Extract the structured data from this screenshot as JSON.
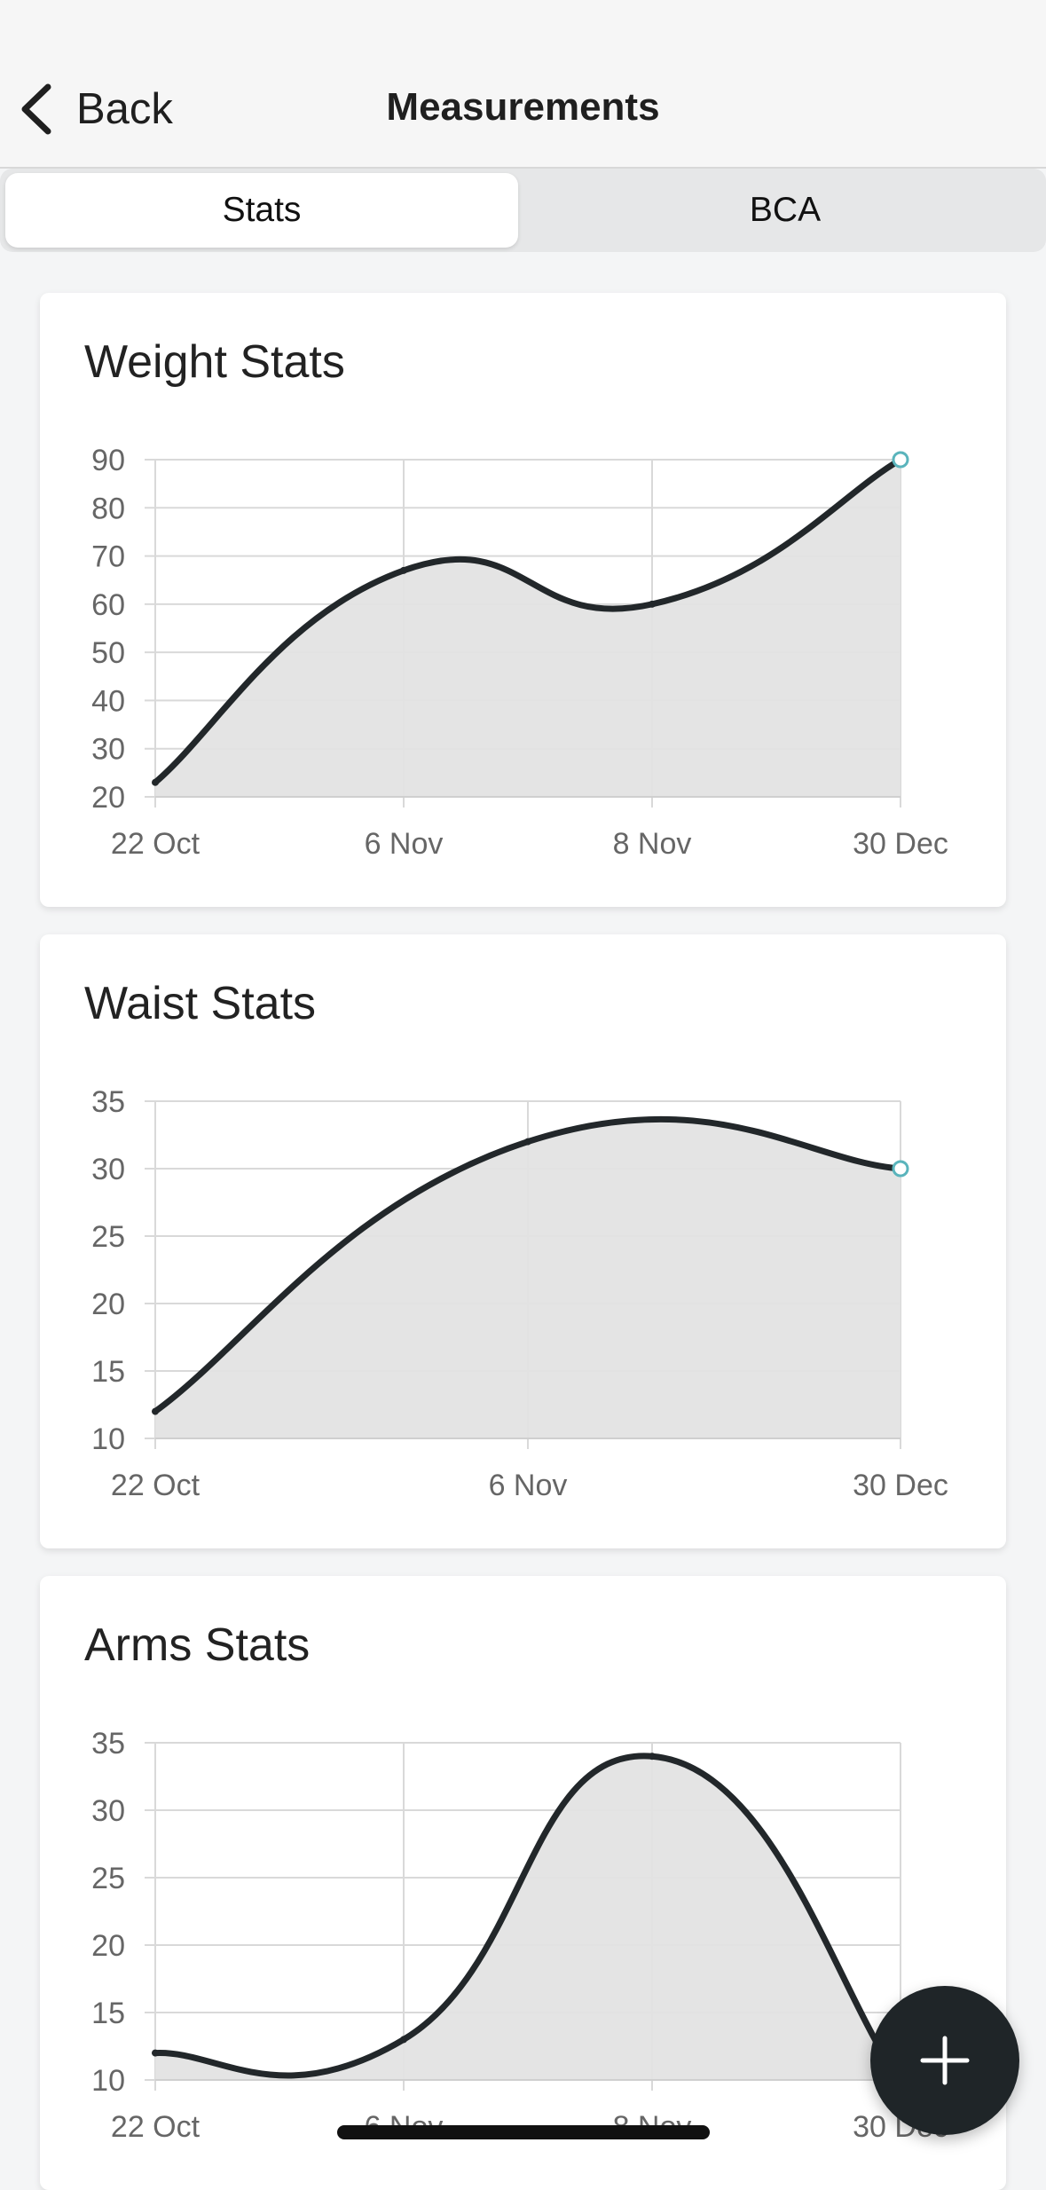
{
  "header": {
    "back_label": "Back",
    "title": "Measurements"
  },
  "tabs": {
    "stats_label": "Stats",
    "bca_label": "BCA",
    "selected": "Stats"
  },
  "colors": {
    "line": "#22272a",
    "fill": "#e3e3e3",
    "grid": "#d9d9d9",
    "highlight_point": "#5ab4bc",
    "fab": "#1f2528"
  },
  "fab": {
    "icon": "plus-icon"
  },
  "chart_data": [
    {
      "type": "area",
      "title": "Weight Stats",
      "categories": [
        "22 Oct",
        "6 Nov",
        "8 Nov",
        "30 Dec"
      ],
      "values": [
        23,
        67,
        60,
        90
      ],
      "yticks": [
        20,
        30,
        40,
        50,
        60,
        70,
        80,
        90
      ],
      "ylim": [
        20,
        90
      ],
      "grid": true,
      "highlight_last": true
    },
    {
      "type": "area",
      "title": "Waist Stats",
      "categories": [
        "22 Oct",
        "6 Nov",
        "30 Dec"
      ],
      "values": [
        12,
        32,
        30
      ],
      "yticks": [
        10,
        15,
        20,
        25,
        30,
        35
      ],
      "ylim": [
        10,
        35
      ],
      "grid": true,
      "highlight_last": true
    },
    {
      "type": "area",
      "title": "Arms Stats",
      "categories": [
        "22 Oct",
        "6 Nov",
        "8 Nov",
        "30 Dec"
      ],
      "values": [
        12,
        13,
        34,
        10
      ],
      "yticks": [
        10,
        15,
        20,
        25,
        30,
        35
      ],
      "ylim": [
        10,
        35
      ],
      "grid": true,
      "highlight_last": false
    }
  ]
}
